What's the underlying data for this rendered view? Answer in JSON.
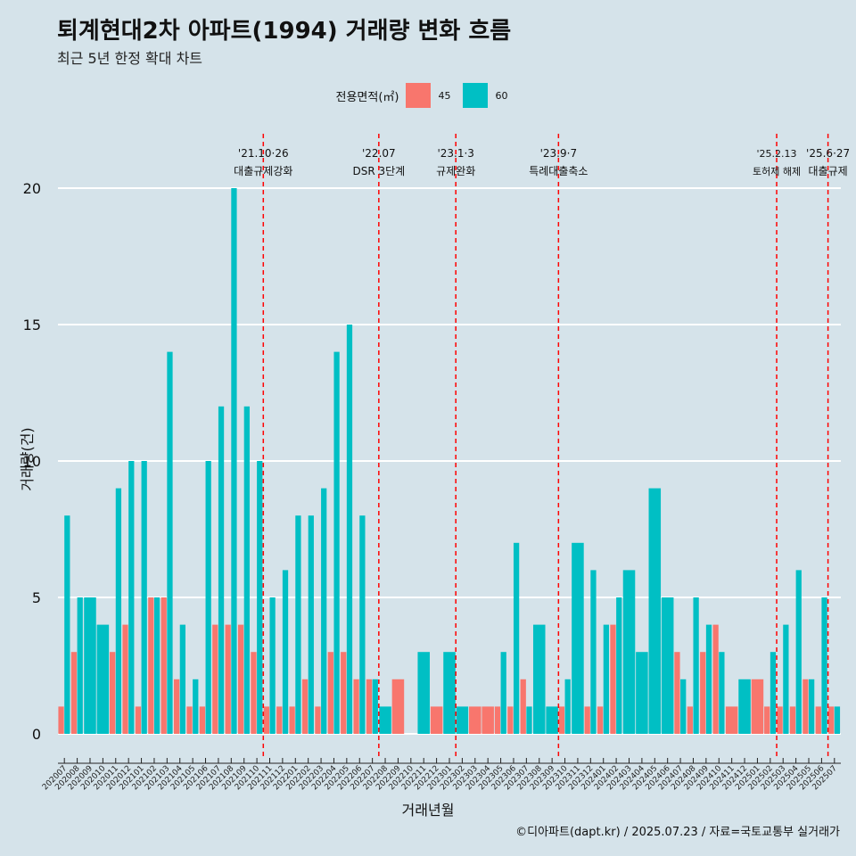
{
  "title": "퇴계현대2차 아파트(1994) 거래량 변화 흐름",
  "subtitle": "최근 5년 한정 확대 차트",
  "caption": "©디아파트(dapt.kr) / 2025.07.23 / 자료=국토교통부 실거래가",
  "colors": {
    "background": "#d5e3ea",
    "series45": "#f8766d",
    "series60": "#00bfc4",
    "event_line": "#ff0000",
    "grid": "#ffffff"
  },
  "chart_data": {
    "type": "bar",
    "xlabel": "거래년월",
    "ylabel": "거래량(건)",
    "ylim": [
      0,
      21
    ],
    "yticks": [
      0,
      5,
      10,
      15,
      20
    ],
    "grid": true,
    "legend": {
      "title": "전용면적(㎡)",
      "position": "top",
      "entries": [
        "45",
        "60"
      ]
    },
    "categories": [
      "202007",
      "202008",
      "202009",
      "202010",
      "202011",
      "202012",
      "202101",
      "202102",
      "202103",
      "202104",
      "202105",
      "202106",
      "202107",
      "202108",
      "202109",
      "202110",
      "202111",
      "202112",
      "202201",
      "202202",
      "202203",
      "202204",
      "202205",
      "202206",
      "202207",
      "202208",
      "202209",
      "202210",
      "202211",
      "202212",
      "202301",
      "202302",
      "202303",
      "202304",
      "202305",
      "202306",
      "202307",
      "202308",
      "202309",
      "202310",
      "202311",
      "202312",
      "202401",
      "202402",
      "202403",
      "202404",
      "202405",
      "202406",
      "202407",
      "202408",
      "202409",
      "202410",
      "202411",
      "202412",
      "202501",
      "202502",
      "202503",
      "202504",
      "202505",
      "202506",
      "202507"
    ],
    "series": [
      {
        "name": "45",
        "values": [
          1,
          3,
          0,
          0,
          3,
          4,
          1,
          5,
          5,
          2,
          1,
          1,
          4,
          4,
          4,
          3,
          1,
          1,
          1,
          2,
          1,
          3,
          3,
          2,
          2,
          0,
          2,
          0,
          0,
          1,
          0,
          0,
          1,
          1,
          1,
          1,
          2,
          0,
          0,
          1,
          0,
          1,
          1,
          4,
          0,
          0,
          0,
          0,
          3,
          1,
          3,
          4,
          1,
          0,
          2,
          1,
          1,
          1,
          2,
          1,
          1
        ]
      },
      {
        "name": "60",
        "values": [
          8,
          5,
          5,
          4,
          9,
          10,
          10,
          5,
          14,
          4,
          2,
          10,
          12,
          20,
          12,
          10,
          5,
          6,
          8,
          8,
          9,
          14,
          15,
          8,
          2,
          1,
          0,
          0,
          3,
          0,
          3,
          1,
          0,
          0,
          3,
          7,
          1,
          4,
          1,
          2,
          7,
          6,
          4,
          5,
          6,
          3,
          9,
          5,
          2,
          5,
          4,
          3,
          0,
          2,
          0,
          3,
          4,
          6,
          2,
          5,
          1
        ]
      }
    ],
    "events": [
      {
        "index": 15,
        "date": "'21.10·26",
        "label": "대출규제강화"
      },
      {
        "index": 24,
        "date": "'22.07",
        "label": "DSR 3단계"
      },
      {
        "index": 30,
        "date": "'23.1·3",
        "label": "규제완화"
      },
      {
        "index": 38,
        "date": "'23.9·7",
        "label": "특례대출축소"
      },
      {
        "index": 55,
        "date": "'25.2.13",
        "label": "토허제 해제"
      },
      {
        "index": 59,
        "date": "'25.6·27",
        "label": "대출규제"
      }
    ]
  }
}
